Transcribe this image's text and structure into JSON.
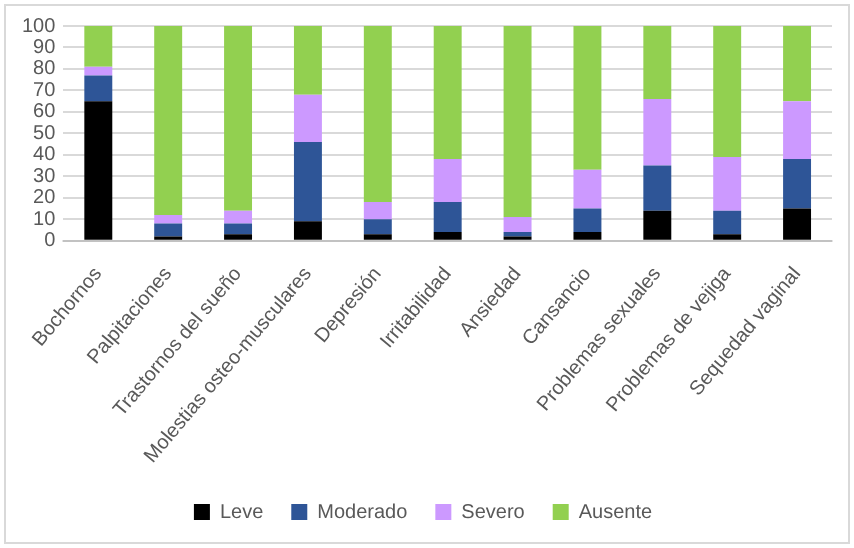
{
  "chart_data": {
    "type": "bar",
    "stacked": true,
    "categories": [
      "Bochornos",
      "Palpitaciones",
      "Trastornos del sueño",
      "Molestias osteo-musculares",
      "Depresión",
      "Irritabilidad",
      "Ansiedad",
      "Cansancio",
      "Problemas sexuales",
      "Problemas de vejiga",
      "Sequedad vaginal"
    ],
    "series": [
      {
        "name": "Leve",
        "color": "#000000",
        "values": [
          65,
          2,
          3,
          9,
          3,
          4,
          2,
          4,
          14,
          3,
          15
        ]
      },
      {
        "name": "Moderado",
        "color": "#2e5597",
        "values": [
          12,
          6,
          5,
          37,
          7,
          14,
          2,
          11,
          21,
          11,
          23
        ]
      },
      {
        "name": "Severo",
        "color": "#cc99ff",
        "values": [
          4,
          4,
          6,
          22,
          8,
          20,
          7,
          18,
          31,
          25,
          27
        ]
      },
      {
        "name": "Ausente",
        "color": "#92d050",
        "values": [
          19,
          88,
          86,
          32,
          82,
          62,
          89,
          67,
          34,
          61,
          35
        ]
      }
    ],
    "ylim": [
      0,
      100
    ],
    "yticks": [
      0,
      10,
      20,
      30,
      40,
      50,
      60,
      70,
      80,
      90,
      100
    ],
    "grid": "y",
    "legend": "bottom"
  }
}
